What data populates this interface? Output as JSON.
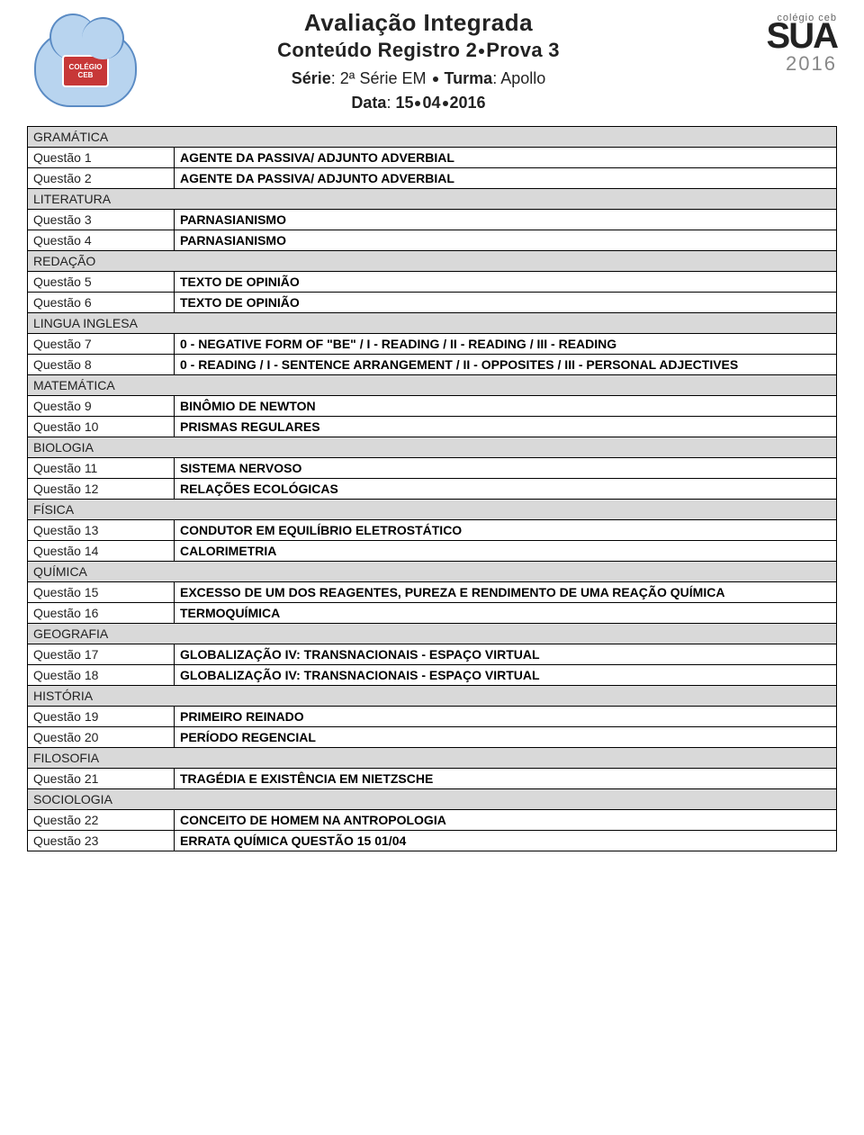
{
  "header": {
    "title1": "Avaliação Integrada",
    "title2_prefix": "Conteúdo Registro 2",
    "title2_suffix": "Prova 3",
    "serie_label": "Série",
    "serie_value": "2ª Série EM",
    "turma_label": "Turma",
    "turma_value": "Apollo",
    "data_label": "Data",
    "data_d": "15",
    "data_m": "04",
    "data_y": "2016",
    "logo_left_text": "COLÉGIO CEB",
    "logo_right_top": "colégio ceb",
    "logo_right_main": "SUA",
    "logo_right_year": "2016"
  },
  "colors": {
    "section_bg": "#d9d9d9",
    "border": "#000000",
    "text": "#222222",
    "cloud_fill": "#b8d4ef",
    "cloud_border": "#5a8bc4",
    "ceb_red": "#c73838"
  },
  "sections": [
    {
      "name": "GRAMÁTICA",
      "rows": [
        {
          "label": "Questão 1",
          "content": "AGENTE DA PASSIVA/ ADJUNTO ADVERBIAL"
        },
        {
          "label": "Questão 2",
          "content": "AGENTE DA PASSIVA/ ADJUNTO ADVERBIAL"
        }
      ]
    },
    {
      "name": "LITERATURA",
      "rows": [
        {
          "label": "Questão 3",
          "content": "PARNASIANISMO"
        },
        {
          "label": "Questão 4",
          "content": "PARNASIANISMO"
        }
      ]
    },
    {
      "name": "REDAÇÃO",
      "rows": [
        {
          "label": "Questão 5",
          "content": "TEXTO DE OPINIÃO"
        },
        {
          "label": "Questão 6",
          "content": "TEXTO DE OPINIÃO"
        }
      ]
    },
    {
      "name": "LINGUA INGLESA",
      "rows": [
        {
          "label": "Questão 7",
          "content": "0 - NEGATIVE FORM OF \"BE\" / I - READING / II - READING / III - READING"
        },
        {
          "label": "Questão 8",
          "content": "0 - READING / I - SENTENCE ARRANGEMENT / II - OPPOSITES / III - PERSONAL ADJECTIVES"
        }
      ]
    },
    {
      "name": "MATEMÁTICA",
      "rows": [
        {
          "label": "Questão 9",
          "content": "BINÔMIO DE NEWTON"
        },
        {
          "label": "Questão 10",
          "content": "PRISMAS REGULARES"
        }
      ]
    },
    {
      "name": "BIOLOGIA",
      "rows": [
        {
          "label": "Questão 11",
          "content": "SISTEMA NERVOSO"
        },
        {
          "label": "Questão 12",
          "content": "RELAÇÕES ECOLÓGICAS"
        }
      ]
    },
    {
      "name": "FÍSICA",
      "rows": [
        {
          "label": "Questão 13",
          "content": "CONDUTOR EM EQUILÍBRIO ELETROSTÁTICO"
        },
        {
          "label": "Questão 14",
          "content": "CALORIMETRIA"
        }
      ]
    },
    {
      "name": "QUÍMICA",
      "rows": [
        {
          "label": "Questão 15",
          "content": "EXCESSO DE UM DOS REAGENTES, PUREZA E RENDIMENTO DE UMA REAÇÃO QUÍMICA"
        },
        {
          "label": "Questão 16",
          "content": "TERMOQUÍMICA"
        }
      ]
    },
    {
      "name": "GEOGRAFIA",
      "rows": [
        {
          "label": "Questão 17",
          "content": "GLOBALIZAÇÃO IV: TRANSNACIONAIS - ESPAÇO VIRTUAL"
        },
        {
          "label": "Questão 18",
          "content": "GLOBALIZAÇÃO IV: TRANSNACIONAIS - ESPAÇO VIRTUAL"
        }
      ]
    },
    {
      "name": "HISTÓRIA",
      "rows": [
        {
          "label": "Questão 19",
          "content": "PRIMEIRO REINADO"
        },
        {
          "label": "Questão 20",
          "content": "PERÍODO REGENCIAL"
        }
      ]
    },
    {
      "name": "FILOSOFIA",
      "rows": [
        {
          "label": "Questão 21",
          "content": "TRAGÉDIA E EXISTÊNCIA EM NIETZSCHE"
        }
      ]
    },
    {
      "name": "SOCIOLOGIA",
      "rows": [
        {
          "label": "Questão 22",
          "content": "CONCEITO DE HOMEM NA ANTROPOLOGIA"
        },
        {
          "label": "Questão 23",
          "content": "ERRATA QUÍMICA QUESTÃO 15 01/04"
        }
      ]
    }
  ]
}
